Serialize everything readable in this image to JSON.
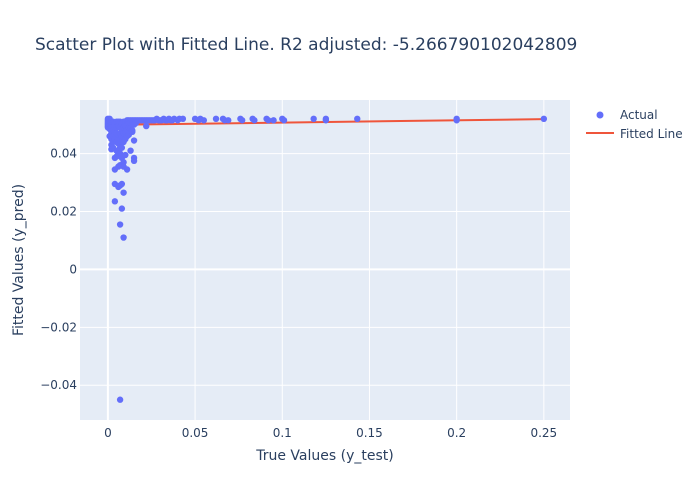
{
  "chart_data": {
    "type": "scatter",
    "title": "Scatter Plot with Fitted Line. R2 adjusted: -5.266790102042809",
    "xlabel": "True Values (y_test)",
    "ylabel": "Fitted Values (y_pred)",
    "xlim": [
      -0.016,
      0.265
    ],
    "ylim": [
      -0.052,
      0.0585
    ],
    "xticks": [
      0,
      0.05,
      0.1,
      0.15,
      0.2,
      0.25
    ],
    "xtick_labels": [
      "0",
      "0.05",
      "0.1",
      "0.15",
      "0.2",
      "0.25"
    ],
    "yticks": [
      -0.04,
      -0.02,
      0,
      0.02,
      0.04
    ],
    "ytick_labels": [
      "−0.04",
      "−0.02",
      "0",
      "0.02",
      "0.04"
    ],
    "grid": true,
    "legend_position": "top-right",
    "colors": {
      "actual": "#636efa",
      "fitted": "#ef553b",
      "plot_bg": "#e5ecf6",
      "grid": "#ffffff"
    },
    "series": [
      {
        "name": "Actual",
        "mode": "markers",
        "points": [
          [
            0,
            0.052
          ],
          [
            0,
            0.0515
          ],
          [
            0,
            0.051
          ],
          [
            0,
            0.0505
          ],
          [
            0,
            0.05
          ],
          [
            0,
            0.0495
          ],
          [
            0,
            0.049
          ],
          [
            0.001,
            0.052
          ],
          [
            0.001,
            0.051
          ],
          [
            0.001,
            0.0495
          ],
          [
            0.001,
            0.0485
          ],
          [
            0.001,
            0.046
          ],
          [
            0.002,
            0.051
          ],
          [
            0.002,
            0.049
          ],
          [
            0.002,
            0.047
          ],
          [
            0.002,
            0.045
          ],
          [
            0.002,
            0.043
          ],
          [
            0.002,
            0.0415
          ],
          [
            0.003,
            0.051
          ],
          [
            0.003,
            0.048
          ],
          [
            0.003,
            0.046
          ],
          [
            0.003,
            0.044
          ],
          [
            0.003,
            0.042
          ],
          [
            0.004,
            0.0505
          ],
          [
            0.004,
            0.0475
          ],
          [
            0.004,
            0.045
          ],
          [
            0.004,
            0.0385
          ],
          [
            0.004,
            0.0345
          ],
          [
            0.004,
            0.0295
          ],
          [
            0.004,
            0.0235
          ],
          [
            0.005,
            0.051
          ],
          [
            0.005,
            0.049
          ],
          [
            0.005,
            0.047
          ],
          [
            0.005,
            0.044
          ],
          [
            0.005,
            0.041
          ],
          [
            0.005,
            0.039
          ],
          [
            0.006,
            0.051
          ],
          [
            0.006,
            0.0495
          ],
          [
            0.006,
            0.0465
          ],
          [
            0.006,
            0.0435
          ],
          [
            0.006,
            0.0395
          ],
          [
            0.006,
            0.0355
          ],
          [
            0.006,
            0.0285
          ],
          [
            0.007,
            0.051
          ],
          [
            0.007,
            0.049
          ],
          [
            0.007,
            0.047
          ],
          [
            0.007,
            0.045
          ],
          [
            0.007,
            0.042
          ],
          [
            0.007,
            0.04
          ],
          [
            0.007,
            0.036
          ],
          [
            0.007,
            0.029
          ],
          [
            0.007,
            0.0155
          ],
          [
            0.007,
            -0.045
          ],
          [
            0.008,
            0.0505
          ],
          [
            0.008,
            0.0485
          ],
          [
            0.008,
            0.046
          ],
          [
            0.008,
            0.044
          ],
          [
            0.008,
            0.042
          ],
          [
            0.008,
            0.0385
          ],
          [
            0.008,
            0.0295
          ],
          [
            0.008,
            0.021
          ],
          [
            0.009,
            0.051
          ],
          [
            0.009,
            0.049
          ],
          [
            0.009,
            0.047
          ],
          [
            0.009,
            0.044
          ],
          [
            0.009,
            0.037
          ],
          [
            0.009,
            0.0355
          ],
          [
            0.009,
            0.0265
          ],
          [
            0.009,
            0.011
          ],
          [
            0.01,
            0.051
          ],
          [
            0.01,
            0.0495
          ],
          [
            0.01,
            0.0475
          ],
          [
            0.01,
            0.045
          ],
          [
            0.01,
            0.0395
          ],
          [
            0.011,
            0.0515
          ],
          [
            0.011,
            0.05
          ],
          [
            0.011,
            0.048
          ],
          [
            0.011,
            0.046
          ],
          [
            0.011,
            0.0345
          ],
          [
            0.012,
            0.0515
          ],
          [
            0.012,
            0.0505
          ],
          [
            0.012,
            0.049
          ],
          [
            0.012,
            0.0465
          ],
          [
            0.013,
            0.0515
          ],
          [
            0.013,
            0.0505
          ],
          [
            0.013,
            0.049
          ],
          [
            0.013,
            0.041
          ],
          [
            0.014,
            0.0515
          ],
          [
            0.014,
            0.05
          ],
          [
            0.014,
            0.048
          ],
          [
            0.014,
            0.0475
          ],
          [
            0.015,
            0.0515
          ],
          [
            0.015,
            0.05
          ],
          [
            0.015,
            0.0445
          ],
          [
            0.015,
            0.0385
          ],
          [
            0.015,
            0.0375
          ],
          [
            0.016,
            0.0515
          ],
          [
            0.016,
            0.0505
          ],
          [
            0.017,
            0.0515
          ],
          [
            0.018,
            0.0515
          ],
          [
            0.019,
            0.0515
          ],
          [
            0.02,
            0.0515
          ],
          [
            0.021,
            0.0515
          ],
          [
            0.022,
            0.0515
          ],
          [
            0.022,
            0.0495
          ],
          [
            0.023,
            0.0515
          ],
          [
            0.024,
            0.0515
          ],
          [
            0.025,
            0.0515
          ],
          [
            0.026,
            0.0515
          ],
          [
            0.027,
            0.0515
          ],
          [
            0.028,
            0.052
          ],
          [
            0.029,
            0.0515
          ],
          [
            0.03,
            0.0515
          ],
          [
            0.031,
            0.0515
          ],
          [
            0.032,
            0.052
          ],
          [
            0.033,
            0.0515
          ],
          [
            0.034,
            0.0515
          ],
          [
            0.035,
            0.052
          ],
          [
            0.036,
            0.0515
          ],
          [
            0.037,
            0.0515
          ],
          [
            0.038,
            0.052
          ],
          [
            0.04,
            0.0515
          ],
          [
            0.041,
            0.052
          ],
          [
            0.043,
            0.052
          ],
          [
            0.05,
            0.052
          ],
          [
            0.052,
            0.0515
          ],
          [
            0.053,
            0.052
          ],
          [
            0.055,
            0.0515
          ],
          [
            0.062,
            0.052
          ],
          [
            0.066,
            0.052
          ],
          [
            0.067,
            0.0515
          ],
          [
            0.069,
            0.0515
          ],
          [
            0.076,
            0.052
          ],
          [
            0.077,
            0.0515
          ],
          [
            0.083,
            0.052
          ],
          [
            0.084,
            0.0515
          ],
          [
            0.091,
            0.052
          ],
          [
            0.092,
            0.0515
          ],
          [
            0.095,
            0.0515
          ],
          [
            0.1,
            0.052
          ],
          [
            0.101,
            0.0515
          ],
          [
            0.118,
            0.052
          ],
          [
            0.125,
            0.052
          ],
          [
            0.125,
            0.0515
          ],
          [
            0.143,
            0.052
          ],
          [
            0.2,
            0.052
          ],
          [
            0.2,
            0.0515
          ],
          [
            0.25,
            0.052
          ]
        ]
      },
      {
        "name": "Fitted Line",
        "mode": "lines",
        "points": [
          [
            0,
            0.0499
          ],
          [
            0.25,
            0.0519
          ]
        ]
      }
    ]
  }
}
